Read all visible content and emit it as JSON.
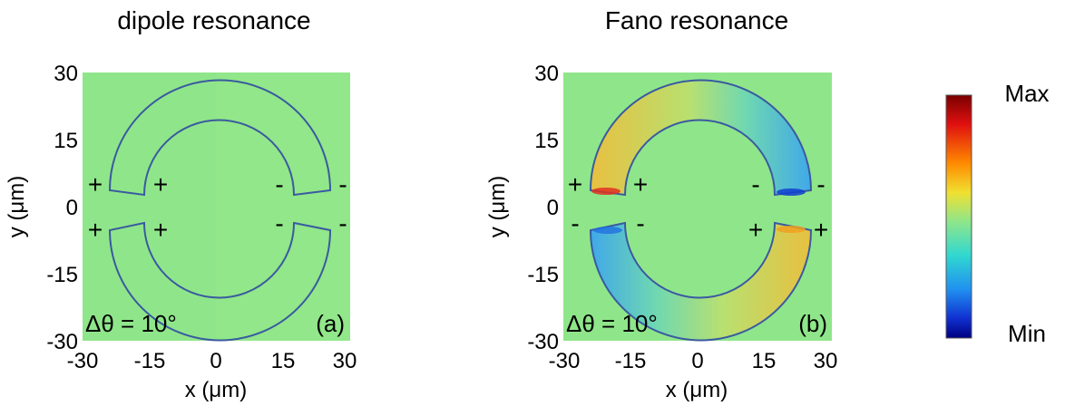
{
  "panels": [
    {
      "title": "dipole resonance",
      "label": "(a)",
      "angle": "Δθ = 10°",
      "xlabel": "x (μm)",
      "ylabel": "y (μm)",
      "xticks": [
        "-30",
        "-15",
        "0",
        "15",
        "30"
      ],
      "yticks": [
        "30",
        "15",
        "0",
        "-15",
        "-30"
      ],
      "signs": {
        "upper_left_outer": "+",
        "upper_left_inner": "+",
        "upper_right_inner": "-",
        "upper_right_outer": "-",
        "lower_left_outer": "+",
        "lower_left_inner": "+",
        "lower_right_inner": "-",
        "lower_right_outer": "-"
      },
      "field_color": "#8fe68a"
    },
    {
      "title": "Fano resonance",
      "label": "(b)",
      "angle": "Δθ = 10°",
      "xlabel": "x (μm)",
      "ylabel": "y (μm)",
      "xticks": [
        "-30",
        "-15",
        "0",
        "15",
        "30"
      ],
      "yticks": [
        "30",
        "15",
        "0",
        "-15",
        "-30"
      ],
      "signs": {
        "upper_left_outer": "+",
        "upper_left_inner": "+",
        "upper_right_inner": "-",
        "upper_right_outer": "-",
        "lower_left_outer": "-",
        "lower_left_inner": "-",
        "lower_right_inner": "+",
        "lower_right_outer": "+"
      },
      "field_color": "#8fe68a"
    }
  ],
  "colorbar": {
    "max_label": "Max",
    "min_label": "Min"
  },
  "colors": {
    "ring_outline": "#3a5aa0",
    "field": "#8fe68a",
    "hot": "#e0a020",
    "cold": "#3090e0"
  }
}
